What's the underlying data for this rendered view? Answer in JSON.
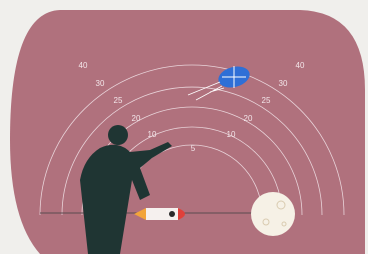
{
  "distance_labels": {
    "left": [
      "40",
      "30",
      "25",
      "20",
      "10",
      "5"
    ],
    "right": [
      "40",
      "30",
      "25",
      "20",
      "10"
    ]
  }
}
